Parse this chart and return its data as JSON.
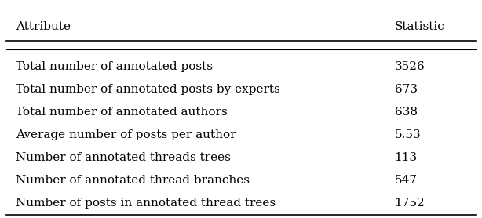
{
  "col_headers": [
    "Attribute",
    "Statistic"
  ],
  "rows": [
    [
      "Total number of annotated posts",
      "3526"
    ],
    [
      "Total number of annotated posts by experts",
      "673"
    ],
    [
      "Total number of annotated authors",
      "638"
    ],
    [
      "Average number of posts per author",
      "5.53"
    ],
    [
      "Number of annotated threads trees",
      "113"
    ],
    [
      "Number of annotated thread branches",
      "547"
    ],
    [
      "Number of posts in annotated thread trees",
      "1752"
    ]
  ],
  "background_color": "#ffffff",
  "text_color": "#000000",
  "header_fontsize": 11,
  "body_fontsize": 11,
  "figsize": [
    6.14,
    2.78
  ],
  "dpi": 100
}
